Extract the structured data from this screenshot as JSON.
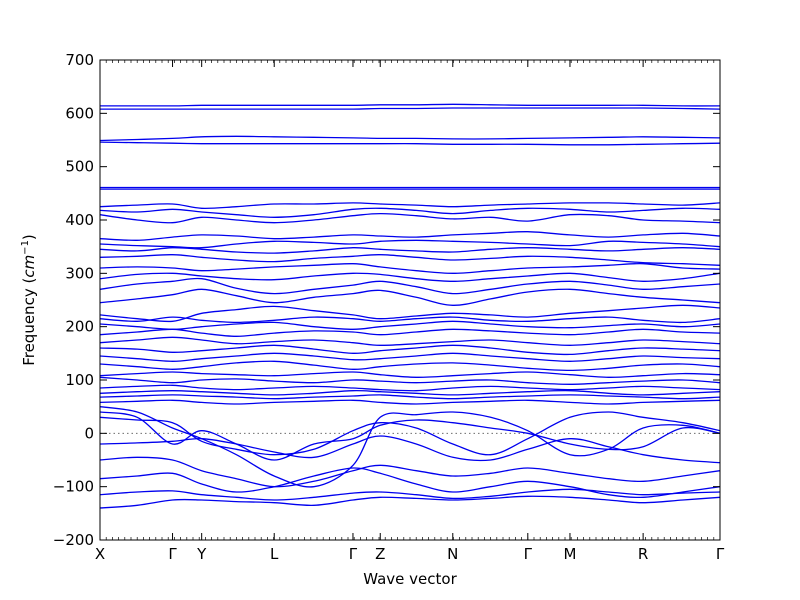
{
  "chart_data": {
    "type": "line",
    "title": "",
    "xlabel": "Wave vector",
    "ylabel_prefix": "Frequency (",
    "ylabel_unit": "cm",
    "ylabel_exp": "−1",
    "ylabel_suffix": ")",
    "ylim": [
      -200,
      700
    ],
    "yticks": [
      -200,
      -100,
      0,
      100,
      200,
      300,
      400,
      500,
      600,
      700
    ],
    "grid": false,
    "legend": "none",
    "line_color": "#0000ee",
    "xlim": [
      0,
      10
    ],
    "high_symmetry_points": [
      {
        "label": "X",
        "x": 0.0
      },
      {
        "label": "Γ",
        "x": 1.17
      },
      {
        "label": "Y",
        "x": 1.64
      },
      {
        "label": "L",
        "x": 2.81
      },
      {
        "label": "Γ",
        "x": 4.08
      },
      {
        "label": "Z",
        "x": 4.52
      },
      {
        "label": "N",
        "x": 5.69
      },
      {
        "label": "Γ",
        "x": 6.9
      },
      {
        "label": "M",
        "x": 7.58
      },
      {
        "label": "R",
        "x": 8.76
      },
      {
        "label": "Γ",
        "x": 10.0
      }
    ],
    "minor_tick_step": 0.1,
    "series_x": [
      0,
      0.6,
      1.17,
      1.64,
      2.2,
      2.81,
      3.45,
      4.08,
      4.52,
      5.1,
      5.69,
      6.3,
      6.9,
      7.58,
      8.2,
      8.76,
      9.4,
      10.0
    ],
    "series": [
      {
        "values": [
          614,
          614,
          614,
          615,
          615,
          615,
          615,
          615,
          616,
          616,
          617,
          616,
          615,
          615,
          615,
          615,
          614,
          614
        ]
      },
      {
        "values": [
          608,
          608,
          608,
          608,
          608,
          608,
          608,
          608,
          609,
          609,
          610,
          610,
          610,
          610,
          610,
          610,
          609,
          608
        ]
      },
      {
        "values": [
          549,
          551,
          553,
          556,
          557,
          556,
          555,
          554,
          553,
          553,
          552,
          552,
          553,
          554,
          555,
          556,
          555,
          554
        ]
      },
      {
        "values": [
          546,
          545,
          544,
          543,
          543,
          543,
          543,
          543,
          543,
          543,
          542,
          542,
          542,
          541,
          541,
          542,
          543,
          544
        ]
      },
      {
        "values": [
          461,
          461,
          461,
          461,
          461,
          461,
          461,
          461,
          461,
          461,
          461,
          461,
          461,
          461,
          461,
          461,
          461,
          461
        ]
      },
      {
        "values": [
          458,
          458,
          458,
          458,
          458,
          458,
          458,
          458,
          458,
          458,
          458,
          458,
          458,
          458,
          458,
          458,
          458,
          458
        ]
      },
      {
        "values": [
          425,
          428,
          430,
          422,
          425,
          430,
          430,
          432,
          430,
          428,
          425,
          428,
          430,
          432,
          432,
          430,
          428,
          432
        ]
      },
      {
        "values": [
          418,
          415,
          420,
          415,
          410,
          405,
          410,
          420,
          422,
          418,
          412,
          418,
          422,
          420,
          415,
          418,
          422,
          420
        ]
      },
      {
        "values": [
          410,
          400,
          395,
          405,
          400,
          395,
          400,
          408,
          412,
          408,
          402,
          405,
          398,
          410,
          408,
          400,
          398,
          395
        ]
      },
      {
        "values": [
          365,
          362,
          368,
          372,
          370,
          365,
          368,
          372,
          370,
          368,
          372,
          375,
          378,
          372,
          368,
          372,
          375,
          370
        ]
      },
      {
        "values": [
          355,
          352,
          350,
          348,
          355,
          360,
          358,
          355,
          360,
          362,
          360,
          358,
          355,
          352,
          360,
          358,
          355,
          350
        ]
      },
      {
        "values": [
          345,
          342,
          348,
          345,
          340,
          338,
          342,
          348,
          345,
          342,
          340,
          345,
          348,
          345,
          342,
          345,
          348,
          345
        ]
      },
      {
        "values": [
          330,
          332,
          335,
          330,
          325,
          322,
          328,
          332,
          335,
          330,
          325,
          328,
          332,
          330,
          325,
          320,
          318,
          315
        ]
      },
      {
        "values": [
          310,
          312,
          310,
          305,
          308,
          312,
          315,
          318,
          312,
          305,
          300,
          305,
          310,
          312,
          315,
          318,
          310,
          308
        ]
      },
      {
        "values": [
          290,
          298,
          300,
          295,
          290,
          288,
          295,
          300,
          298,
          290,
          285,
          290,
          295,
          300,
          292,
          285,
          290,
          300
        ]
      },
      {
        "values": [
          270,
          280,
          285,
          290,
          272,
          262,
          270,
          278,
          285,
          275,
          262,
          270,
          280,
          285,
          278,
          270,
          275,
          280
        ]
      },
      {
        "values": [
          245,
          252,
          260,
          270,
          258,
          245,
          255,
          262,
          268,
          255,
          240,
          252,
          265,
          270,
          262,
          255,
          250,
          245
        ]
      },
      {
        "values": [
          222,
          215,
          210,
          225,
          232,
          238,
          230,
          222,
          215,
          220,
          225,
          222,
          218,
          225,
          230,
          235,
          240,
          235
        ]
      },
      {
        "values": [
          215,
          210,
          218,
          212,
          208,
          212,
          218,
          215,
          210,
          215,
          218,
          212,
          210,
          215,
          218,
          212,
          208,
          215
        ]
      },
      {
        "values": [
          205,
          200,
          195,
          200,
          205,
          208,
          200,
          195,
          200,
          205,
          210,
          205,
          200,
          198,
          202,
          205,
          200,
          205
        ]
      },
      {
        "values": [
          185,
          190,
          195,
          188,
          182,
          188,
          192,
          190,
          185,
          190,
          195,
          192,
          188,
          185,
          190,
          195,
          190,
          188
        ]
      },
      {
        "values": [
          170,
          175,
          180,
          175,
          168,
          172,
          175,
          170,
          165,
          168,
          172,
          175,
          170,
          165,
          170,
          175,
          172,
          168
        ]
      },
      {
        "values": [
          160,
          158,
          152,
          155,
          160,
          165,
          158,
          150,
          155,
          160,
          165,
          160,
          152,
          148,
          155,
          160,
          158,
          155
        ]
      },
      {
        "values": [
          145,
          140,
          135,
          140,
          145,
          150,
          145,
          138,
          140,
          145,
          150,
          145,
          140,
          135,
          140,
          145,
          142,
          140
        ]
      },
      {
        "values": [
          130,
          125,
          120,
          125,
          132,
          135,
          128,
          120,
          125,
          130,
          132,
          128,
          122,
          118,
          122,
          128,
          130,
          125
        ]
      },
      {
        "values": [
          108,
          112,
          115,
          112,
          110,
          108,
          112,
          115,
          110,
          105,
          108,
          112,
          115,
          110,
          105,
          108,
          112,
          110
        ]
      },
      {
        "values": [
          105,
          100,
          95,
          100,
          102,
          98,
          95,
          100,
          98,
          95,
          98,
          100,
          95,
          92,
          95,
          98,
          100,
          95
        ]
      },
      {
        "values": [
          85,
          88,
          90,
          85,
          82,
          85,
          88,
          85,
          82,
          80,
          85,
          88,
          85,
          82,
          85,
          88,
          85,
          82
        ]
      },
      {
        "values": [
          75,
          78,
          80,
          78,
          75,
          72,
          75,
          80,
          78,
          75,
          72,
          75,
          78,
          80,
          75,
          72,
          75,
          78
        ]
      },
      {
        "values": [
          68,
          70,
          72,
          70,
          68,
          65,
          68,
          70,
          72,
          68,
          65,
          68,
          70,
          72,
          70,
          68,
          65,
          68
        ]
      },
      {
        "values": [
          58,
          60,
          62,
          58,
          55,
          58,
          60,
          62,
          58,
          55,
          58,
          60,
          62,
          58,
          55,
          58,
          60,
          62
        ]
      },
      {
        "values": [
          50,
          40,
          10,
          -10,
          -40,
          -80,
          -100,
          -60,
          30,
          35,
          40,
          30,
          5,
          -40,
          -30,
          10,
          15,
          0
        ]
      },
      {
        "values": [
          40,
          30,
          -20,
          5,
          -20,
          -50,
          -20,
          -10,
          15,
          25,
          20,
          10,
          0,
          -20,
          -30,
          -25,
          10,
          0
        ]
      },
      {
        "values": [
          30,
          25,
          20,
          -15,
          -30,
          -40,
          -30,
          5,
          20,
          10,
          -20,
          -40,
          -10,
          30,
          40,
          30,
          20,
          5
        ]
      },
      {
        "values": [
          -20,
          -18,
          -15,
          -10,
          -20,
          -35,
          -45,
          -20,
          -5,
          -20,
          -45,
          -50,
          -30,
          -10,
          -25,
          -40,
          -50,
          -55
        ]
      },
      {
        "values": [
          -50,
          -45,
          -50,
          -70,
          -85,
          -100,
          -90,
          -70,
          -60,
          -70,
          -80,
          -75,
          -65,
          -75,
          -85,
          -90,
          -80,
          -70
        ]
      },
      {
        "values": [
          -85,
          -80,
          -75,
          -95,
          -110,
          -100,
          -80,
          -65,
          -75,
          -95,
          -110,
          -100,
          -90,
          -100,
          -115,
          -120,
          -110,
          -100
        ]
      },
      {
        "values": [
          -115,
          -110,
          -108,
          -115,
          -120,
          -125,
          -120,
          -112,
          -110,
          -115,
          -122,
          -118,
          -110,
          -105,
          -110,
          -115,
          -112,
          -110
        ]
      },
      {
        "values": [
          -140,
          -135,
          -125,
          -125,
          -128,
          -130,
          -135,
          -125,
          -120,
          -122,
          -125,
          -122,
          -118,
          -120,
          -125,
          -130,
          -125,
          -120
        ]
      }
    ]
  }
}
